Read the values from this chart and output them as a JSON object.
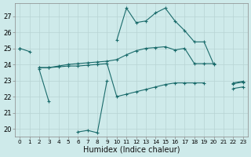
{
  "xlabel": "Humidex (Indice chaleur)",
  "bg_color": "#ceeaea",
  "grid_color": "#b8d4d4",
  "line_color": "#1a6b6b",
  "ylim": [
    19.5,
    27.8
  ],
  "yticks": [
    20,
    21,
    22,
    23,
    24,
    25,
    26,
    27
  ],
  "xticks": [
    0,
    1,
    2,
    3,
    4,
    5,
    6,
    7,
    8,
    9,
    10,
    11,
    12,
    13,
    14,
    15,
    16,
    17,
    18,
    19,
    20,
    21,
    22,
    23
  ],
  "hours": [
    0,
    1,
    2,
    3,
    4,
    5,
    6,
    7,
    8,
    9,
    10,
    11,
    12,
    13,
    14,
    15,
    16,
    17,
    18,
    19,
    20,
    21,
    22,
    23
  ],
  "line_max": [
    25.0,
    24.8,
    null,
    null,
    null,
    null,
    null,
    null,
    null,
    null,
    25.5,
    27.5,
    26.6,
    26.7,
    27.2,
    27.5,
    26.7,
    26.1,
    25.4,
    25.4,
    24.0,
    null,
    22.8,
    22.9
  ],
  "line_upper": [
    25.0,
    null,
    23.8,
    23.8,
    23.9,
    24.0,
    24.05,
    24.1,
    24.15,
    24.2,
    24.3,
    24.6,
    24.85,
    25.0,
    25.05,
    25.1,
    24.9,
    25.0,
    24.05,
    24.05,
    24.05,
    null,
    22.85,
    22.95
  ],
  "line_lower": [
    25.0,
    null,
    23.8,
    23.8,
    23.85,
    23.9,
    23.9,
    23.95,
    24.0,
    24.05,
    22.0,
    22.15,
    22.3,
    22.45,
    22.6,
    22.75,
    22.85,
    22.85,
    22.85,
    22.85,
    null,
    null,
    22.5,
    22.6
  ],
  "line_min": [
    null,
    null,
    23.7,
    21.7,
    null,
    null,
    19.8,
    19.9,
    19.75,
    23.0,
    null,
    null,
    null,
    null,
    null,
    null,
    null,
    null,
    null,
    null,
    null,
    null,
    null,
    null
  ]
}
